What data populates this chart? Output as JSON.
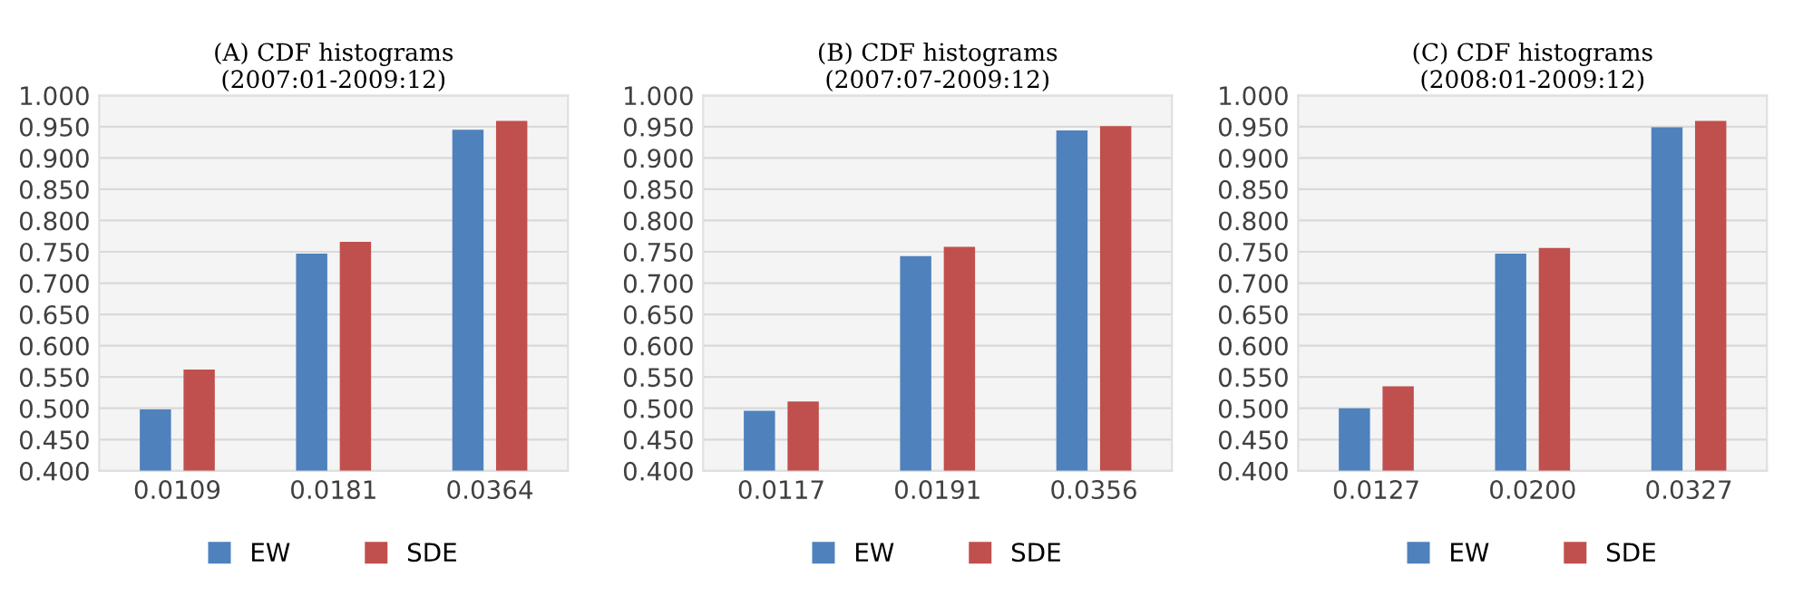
{
  "chart_data": [
    {
      "type": "bar",
      "title": "(A) CDF histograms\n(2007:01-2009:12)",
      "categories": [
        "0.0109",
        "0.0181",
        "0.0364"
      ],
      "series": [
        {
          "name": "EW",
          "color": "#4f81bd",
          "values": [
            0.498,
            0.747,
            0.945
          ]
        },
        {
          "name": "SDE",
          "color": "#c0504d",
          "values": [
            0.562,
            0.766,
            0.959
          ]
        }
      ],
      "ylim": [
        0.4,
        1.0
      ],
      "yticks": [
        {
          "value": 0.4,
          "label": "0.400"
        },
        {
          "value": 0.45,
          "label": "0.450"
        },
        {
          "value": 0.5,
          "label": "0.500"
        },
        {
          "value": 0.55,
          "label": "0.550"
        },
        {
          "value": 0.6,
          "label": "0.600"
        },
        {
          "value": 0.65,
          "label": "0.650"
        },
        {
          "value": 0.7,
          "label": "0.700"
        },
        {
          "value": 0.75,
          "label": "0.750"
        },
        {
          "value": 0.8,
          "label": "0.800"
        },
        {
          "value": 0.85,
          "label": "0.850"
        },
        {
          "value": 0.9,
          "label": "0.900"
        },
        {
          "value": 0.95,
          "label": "0.950"
        },
        {
          "value": 1.0,
          "label": "1.000"
        }
      ],
      "grid": "y",
      "legend": "bottom"
    },
    {
      "type": "bar",
      "title": "(B) CDF histograms\n(2007:07-2009:12)",
      "categories": [
        "0.0117",
        "0.0191",
        "0.0356"
      ],
      "series": [
        {
          "name": "EW",
          "color": "#4f81bd",
          "values": [
            0.496,
            0.743,
            0.944
          ]
        },
        {
          "name": "SDE",
          "color": "#c0504d",
          "values": [
            0.511,
            0.758,
            0.951
          ]
        }
      ],
      "ylim": [
        0.4,
        1.0
      ],
      "yticks": [
        {
          "value": 0.4,
          "label": "0.400"
        },
        {
          "value": 0.45,
          "label": "0.450"
        },
        {
          "value": 0.5,
          "label": "0.500"
        },
        {
          "value": 0.55,
          "label": "0.550"
        },
        {
          "value": 0.6,
          "label": "0.600"
        },
        {
          "value": 0.65,
          "label": "0.650"
        },
        {
          "value": 0.7,
          "label": "0.700"
        },
        {
          "value": 0.75,
          "label": "0.750"
        },
        {
          "value": 0.8,
          "label": "0.800"
        },
        {
          "value": 0.85,
          "label": "0.850"
        },
        {
          "value": 0.9,
          "label": "0.900"
        },
        {
          "value": 0.95,
          "label": "0.950"
        },
        {
          "value": 1.0,
          "label": "1.000"
        }
      ],
      "grid": "y",
      "legend": "bottom"
    },
    {
      "type": "bar",
      "title": "(C) CDF histograms\n(2008:01-2009:12)",
      "categories": [
        "0.0127",
        "0.0200",
        "0.0327"
      ],
      "series": [
        {
          "name": "EW",
          "color": "#4f81bd",
          "values": [
            0.5,
            0.747,
            0.949
          ]
        },
        {
          "name": "SDE",
          "color": "#c0504d",
          "values": [
            0.535,
            0.756,
            0.959
          ]
        }
      ],
      "ylim": [
        0.4,
        1.0
      ],
      "yticks": [
        {
          "value": 0.4,
          "label": "0.400"
        },
        {
          "value": 0.45,
          "label": "0.450"
        },
        {
          "value": 0.5,
          "label": "0.500"
        },
        {
          "value": 0.55,
          "label": "0.550"
        },
        {
          "value": 0.6,
          "label": "0.600"
        },
        {
          "value": 0.65,
          "label": "0.650"
        },
        {
          "value": 0.7,
          "label": "0.700"
        },
        {
          "value": 0.75,
          "label": "0.750"
        },
        {
          "value": 0.8,
          "label": "0.800"
        },
        {
          "value": 0.85,
          "label": "0.850"
        },
        {
          "value": 0.9,
          "label": "0.900"
        },
        {
          "value": 0.95,
          "label": "0.950"
        },
        {
          "value": 1.0,
          "label": "1.000"
        }
      ],
      "grid": "y",
      "legend": "bottom"
    }
  ]
}
